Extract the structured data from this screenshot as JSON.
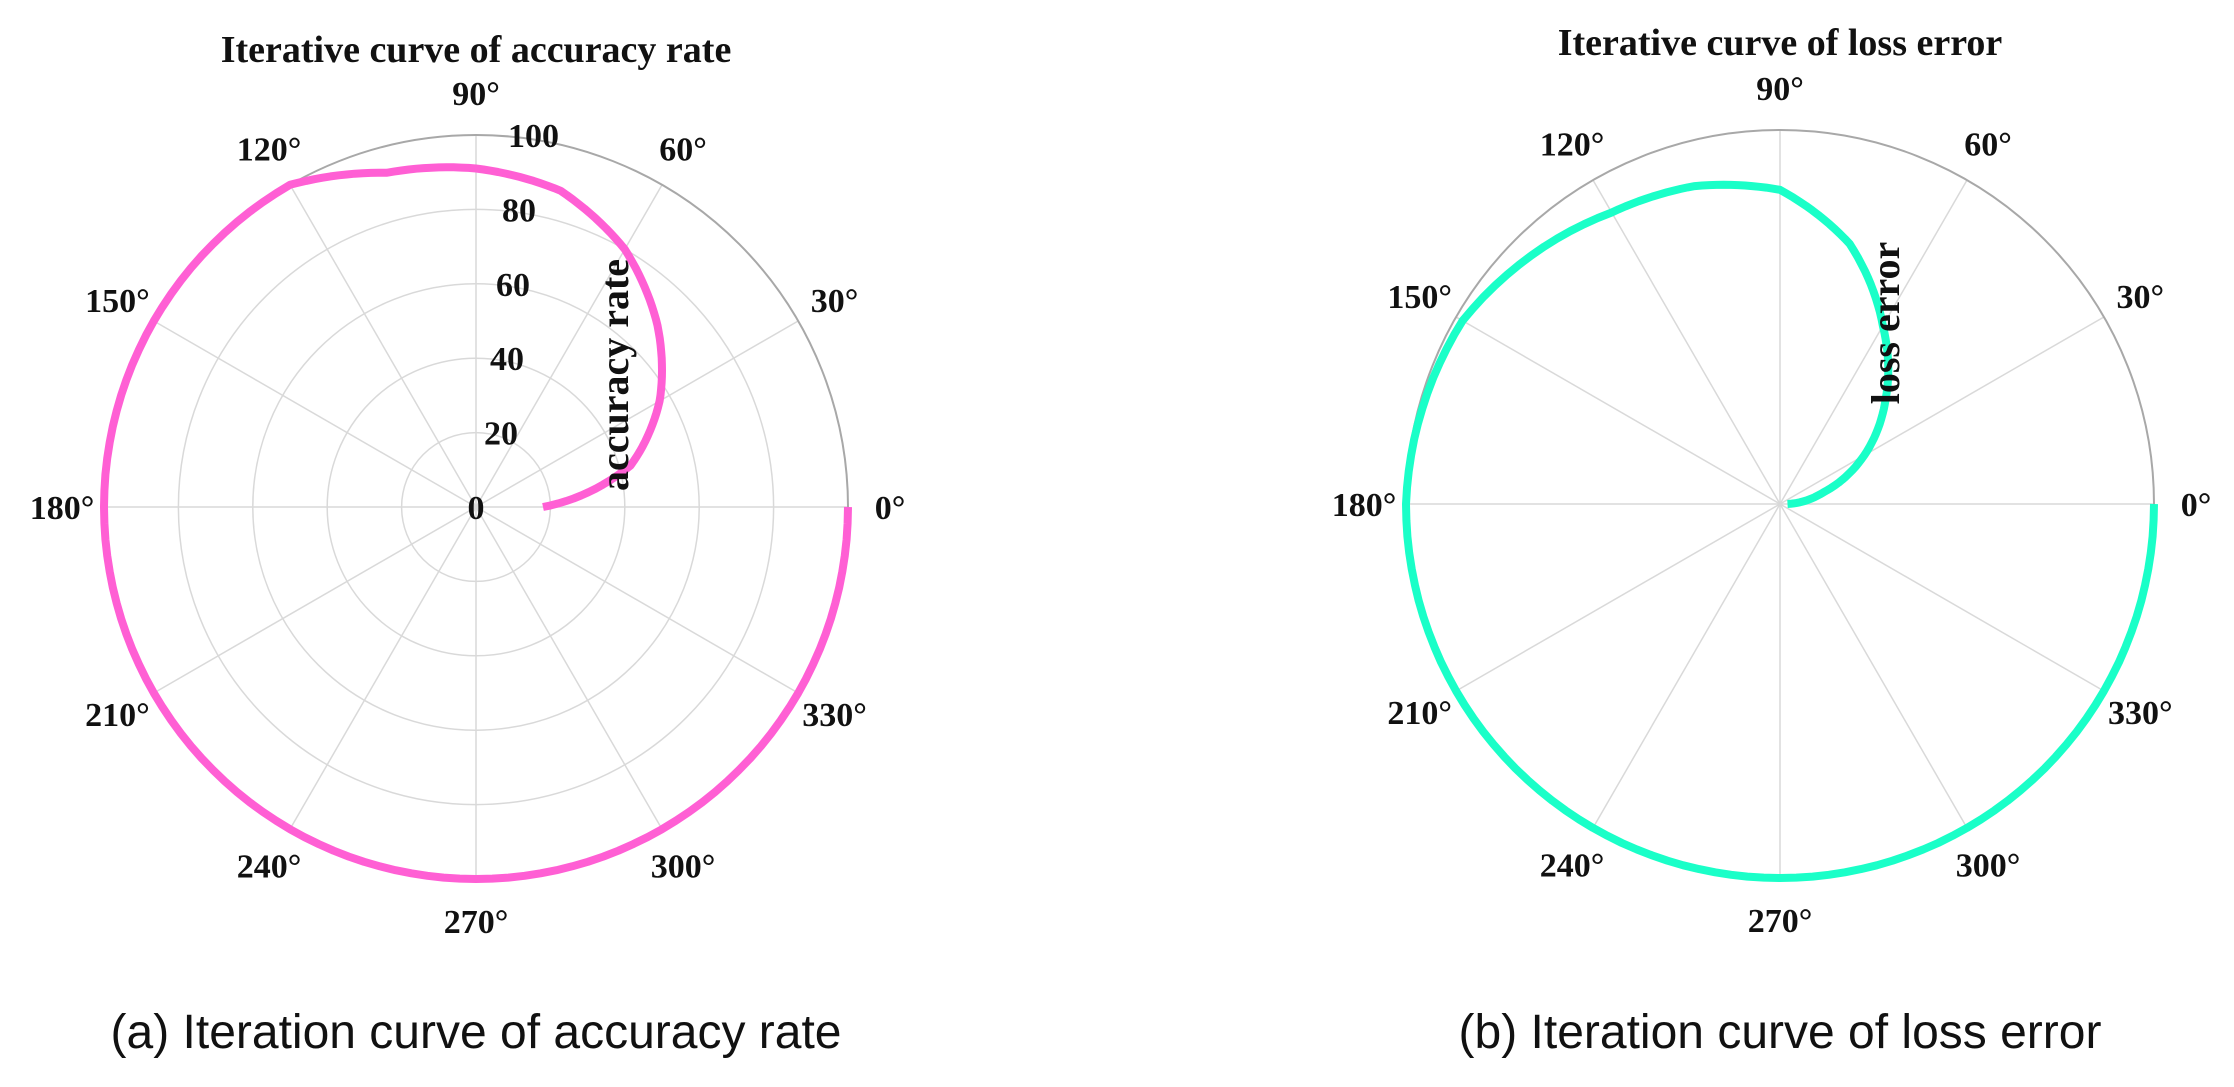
{
  "chart_data": [
    {
      "type": "polar-line",
      "title": "Iterative curve of accuracy rate",
      "rlabel": "accuracy rate",
      "caption": "(a) Iteration curve of accuracy rate",
      "rlim": [
        0,
        100
      ],
      "r_ticks": [
        "0",
        "20",
        "40",
        "60",
        "80",
        "100"
      ],
      "theta_ticks": [
        "0°",
        "30°",
        "60°",
        "90°",
        "120°",
        "150°",
        "180°",
        "210°",
        "240°",
        "270°",
        "300°",
        "330°"
      ],
      "theta_direction": "counterclockwise",
      "grid": true,
      "color": "#ff5fd4",
      "series": [
        {
          "theta_deg": [
            360,
            330,
            300,
            270,
            240,
            210,
            180,
            150,
            120,
            105,
            90,
            75,
            60,
            45,
            30,
            15,
            0
          ],
          "r": [
            100,
            100,
            100,
            100,
            100,
            100,
            100,
            100,
            100,
            93,
            91,
            88,
            80,
            69,
            57,
            43,
            18
          ]
        }
      ]
    },
    {
      "type": "polar-line",
      "title": "Iterative curve of loss error",
      "rlabel": "loss error",
      "caption": "(b) Iteration curve of loss error",
      "rlim": [
        0,
        1
      ],
      "r_ticks": [],
      "theta_ticks": [
        "0°",
        "30°",
        "60°",
        "90°",
        "120°",
        "150°",
        "180°",
        "210°",
        "240°",
        "270°",
        "300°",
        "330°"
      ],
      "theta_direction": "counterclockwise",
      "grid": true,
      "color": "#1affc8",
      "series": [
        {
          "theta_deg": [
            360,
            330,
            300,
            270,
            240,
            210,
            180,
            150,
            120,
            105,
            90,
            75,
            60,
            45,
            30,
            15,
            0
          ],
          "r": [
            1.0,
            1.0,
            1.0,
            1.0,
            1.0,
            1.0,
            1.0,
            0.98,
            0.9,
            0.88,
            0.84,
            0.72,
            0.55,
            0.4,
            0.26,
            0.12,
            0.02
          ]
        }
      ]
    }
  ]
}
